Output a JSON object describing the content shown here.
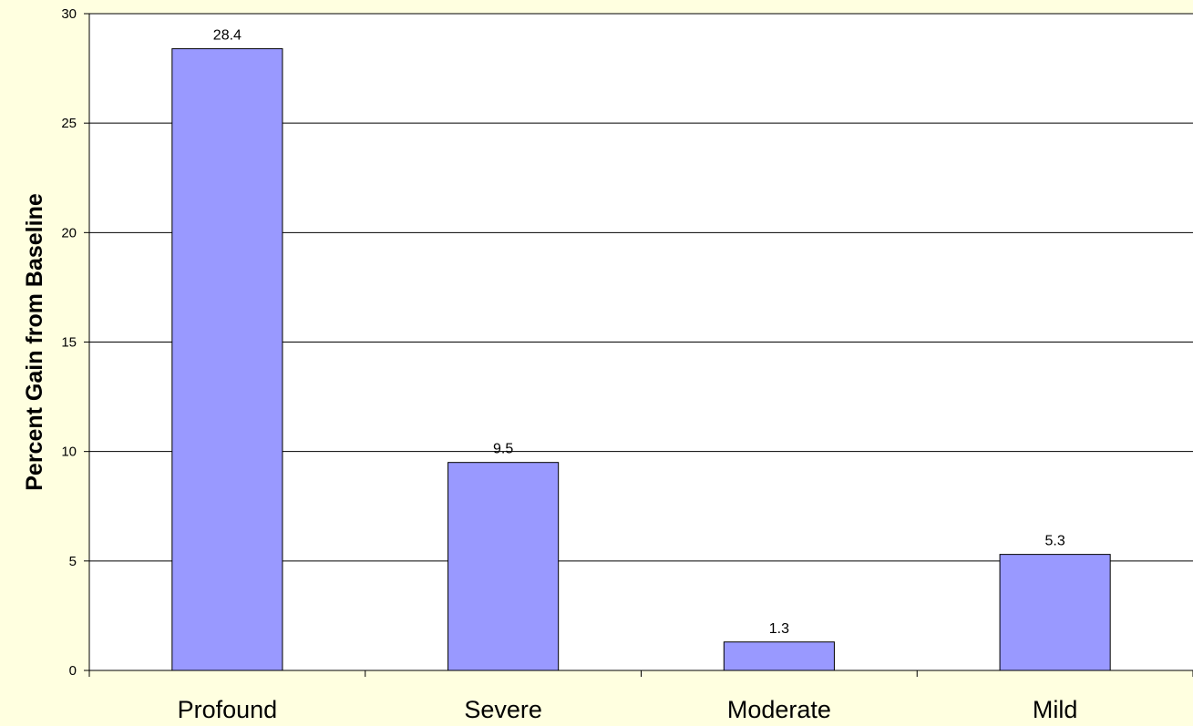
{
  "chart_data": {
    "type": "bar",
    "title": "",
    "xlabel": "",
    "ylabel": "Percent Gain from Baseline",
    "categories": [
      "Profound",
      "Severe",
      "Moderate",
      "Mild"
    ],
    "values": [
      28.4,
      9.5,
      1.3,
      5.3
    ],
    "data_labels": [
      "28.4",
      "9.5",
      "1.3",
      "5.3"
    ],
    "ylim": [
      0,
      30
    ],
    "yticks": [
      0,
      5,
      10,
      15,
      20,
      25,
      30
    ],
    "ytick_labels": [
      "0",
      "5",
      "10",
      "15",
      "20",
      "25",
      "30"
    ],
    "grid": true,
    "legend": "none",
    "colors": {
      "bar_fill": "#9999ff",
      "bar_stroke": "#000000",
      "plot_background": "#ffffff",
      "page_background": "#ffffe0",
      "grid": "#000000"
    }
  }
}
